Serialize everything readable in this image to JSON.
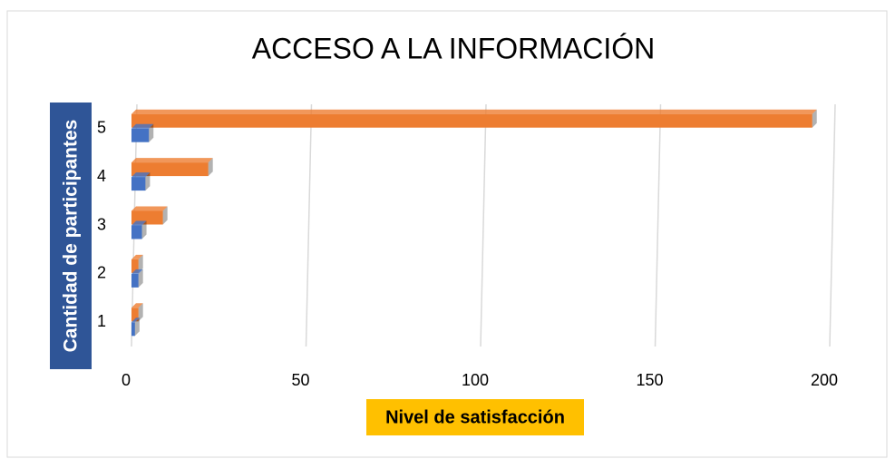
{
  "chart_data": {
    "type": "bar",
    "orientation": "horizontal",
    "title": "ACCESO A LA INFORMACIÓN",
    "y_label": "Cantidad de participantes",
    "x_label": "Nivel de satisfacción",
    "categories": [
      "1",
      "2",
      "3",
      "4",
      "5"
    ],
    "series": [
      {
        "color": "#4472c4",
        "values": [
          1,
          2,
          3,
          4,
          5
        ]
      },
      {
        "color": "#ed7d31",
        "values": [
          2,
          2,
          9,
          22,
          195
        ]
      }
    ],
    "xlim": [
      0,
      200
    ],
    "xticks": [
      0,
      50,
      100,
      150,
      200
    ],
    "grid": true
  }
}
